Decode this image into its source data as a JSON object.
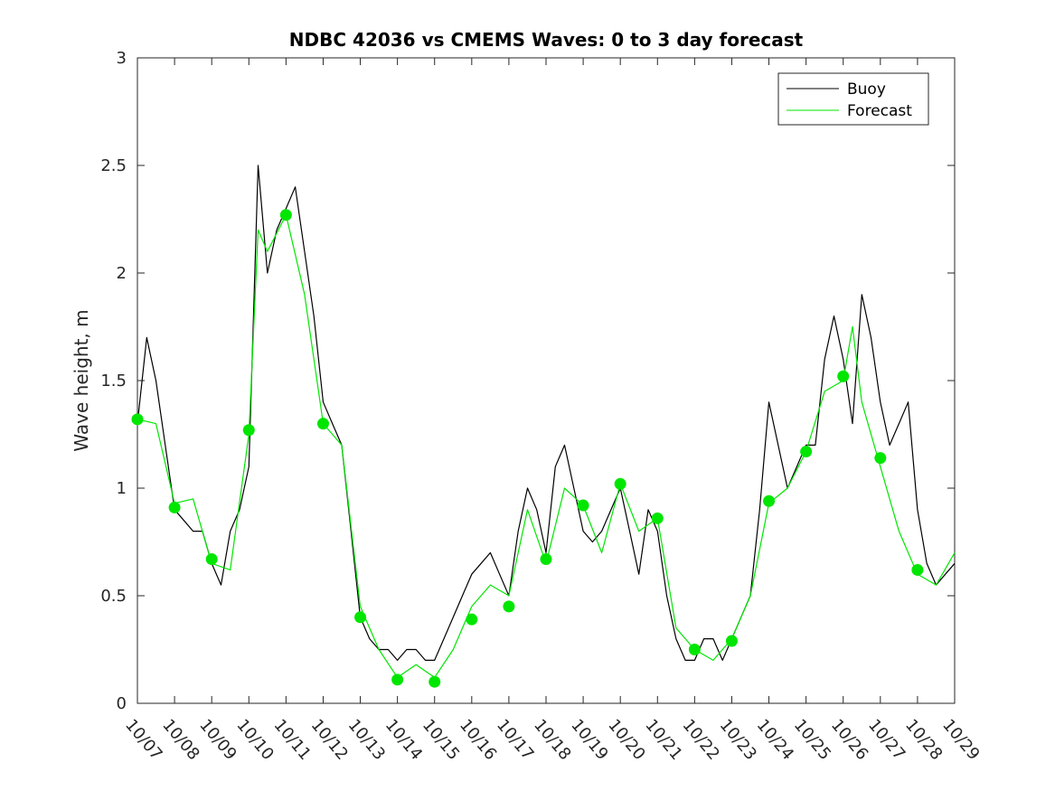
{
  "chart_data": {
    "type": "line",
    "title": "NDBC 42036 vs CMEMS Waves: 0 to 3 day forecast",
    "ylabel": "Wave height, m",
    "xlabel": "",
    "xlim": [
      "10/07",
      "10/29"
    ],
    "ylim": [
      0,
      3
    ],
    "yticks": [
      0,
      0.5,
      1,
      1.5,
      2,
      2.5,
      3
    ],
    "ytick_labels": [
      "0",
      "0.5",
      "1",
      "1.5",
      "2",
      "2.5",
      "3"
    ],
    "xtick_labels": [
      "10/07",
      "10/08",
      "10/09",
      "10/10",
      "10/11",
      "10/12",
      "10/13",
      "10/14",
      "10/15",
      "10/16",
      "10/17",
      "10/18",
      "10/19",
      "10/20",
      "10/21",
      "10/22",
      "10/23",
      "10/24",
      "10/25",
      "10/26",
      "10/27",
      "10/28",
      "10/29"
    ],
    "legend": {
      "position": "top-right",
      "entries": [
        "Buoy",
        "Forecast"
      ]
    },
    "colors": {
      "buoy": "#000000",
      "forecast": "#00e600",
      "markers": "#00e600",
      "axes": "#262626"
    },
    "series": [
      {
        "name": "Buoy",
        "x": [
          "10/07",
          "10/07 06:00",
          "10/07 12:00",
          "10/07 18:00",
          "10/08",
          "10/08 06:00",
          "10/08 12:00",
          "10/08 18:00",
          "10/09",
          "10/09 06:00",
          "10/09 12:00",
          "10/09 18:00",
          "10/10",
          "10/10 06:00",
          "10/10 12:00",
          "10/10 18:00",
          "10/11",
          "10/11 06:00",
          "10/11 12:00",
          "10/11 18:00",
          "10/12",
          "10/12 06:00",
          "10/12 12:00",
          "10/12 18:00",
          "10/13",
          "10/13 06:00",
          "10/13 12:00",
          "10/13 18:00",
          "10/14",
          "10/14 06:00",
          "10/14 12:00",
          "10/14 18:00",
          "10/15",
          "10/15 06:00",
          "10/15 12:00",
          "10/15 18:00",
          "10/16",
          "10/16 06:00",
          "10/16 12:00",
          "10/16 18:00",
          "10/17",
          "10/17 06:00",
          "10/17 12:00",
          "10/17 18:00",
          "10/18",
          "10/18 06:00",
          "10/18 12:00",
          "10/18 18:00",
          "10/19",
          "10/19 06:00",
          "10/19 12:00",
          "10/19 18:00",
          "10/20",
          "10/20 06:00",
          "10/20 12:00",
          "10/20 18:00",
          "10/21",
          "10/21 06:00",
          "10/21 12:00",
          "10/21 18:00",
          "10/22",
          "10/22 06:00",
          "10/22 12:00",
          "10/22 18:00",
          "10/23",
          "10/23 06:00",
          "10/23 12:00",
          "10/23 18:00",
          "10/24",
          "10/24 06:00",
          "10/24 12:00",
          "10/24 18:00",
          "10/25",
          "10/25 06:00",
          "10/25 12:00",
          "10/25 18:00",
          "10/26",
          "10/26 06:00",
          "10/26 12:00",
          "10/26 18:00",
          "10/27",
          "10/27 06:00",
          "10/27 12:00",
          "10/27 18:00",
          "10/28",
          "10/28 06:00",
          "10/28 12:00",
          "10/28 18:00",
          "10/29"
        ],
        "y": [
          1.3,
          1.7,
          1.5,
          1.2,
          0.9,
          0.85,
          0.8,
          0.8,
          0.65,
          0.55,
          0.8,
          0.9,
          1.1,
          2.5,
          2.0,
          2.2,
          2.3,
          2.4,
          2.1,
          1.8,
          1.4,
          1.3,
          1.2,
          0.8,
          0.4,
          0.3,
          0.25,
          0.25,
          0.2,
          0.25,
          0.25,
          0.2,
          0.2,
          0.3,
          0.4,
          0.5,
          0.6,
          0.65,
          0.7,
          0.6,
          0.5,
          0.8,
          1.0,
          0.9,
          0.7,
          1.1,
          1.2,
          1.0,
          0.8,
          0.75,
          0.8,
          0.9,
          1.0,
          0.8,
          0.6,
          0.9,
          0.8,
          0.5,
          0.3,
          0.2,
          0.2,
          0.3,
          0.3,
          0.2,
          0.3,
          0.4,
          0.5,
          0.9,
          1.4,
          1.2,
          1.0,
          1.1,
          1.2,
          1.2,
          1.6,
          1.8,
          1.6,
          1.3,
          1.9,
          1.7,
          1.4,
          1.2,
          1.3,
          1.4,
          0.9,
          0.65,
          0.55,
          0.6,
          0.65
        ]
      },
      {
        "name": "Forecast",
        "x": [
          "10/07",
          "10/07 12:00",
          "10/08",
          "10/08 12:00",
          "10/09",
          "10/09 12:00",
          "10/10",
          "10/10 06:00",
          "10/10 12:00",
          "10/11",
          "10/11 12:00",
          "10/12",
          "10/12 12:00",
          "10/13",
          "10/13 12:00",
          "10/14",
          "10/14 12:00",
          "10/15",
          "10/15 12:00",
          "10/16",
          "10/16 12:00",
          "10/17",
          "10/17 12:00",
          "10/18",
          "10/18 12:00",
          "10/19",
          "10/19 12:00",
          "10/20",
          "10/20 12:00",
          "10/21",
          "10/21 12:00",
          "10/22",
          "10/22 12:00",
          "10/23",
          "10/23 12:00",
          "10/24",
          "10/24 12:00",
          "10/25",
          "10/25 12:00",
          "10/26",
          "10/26 06:00",
          "10/26 12:00",
          "10/27",
          "10/27 12:00",
          "10/28",
          "10/28 12:00",
          "10/29"
        ],
        "y": [
          1.32,
          1.3,
          0.93,
          0.95,
          0.65,
          0.62,
          1.25,
          2.2,
          2.1,
          2.27,
          1.9,
          1.3,
          1.2,
          0.45,
          0.25,
          0.12,
          0.18,
          0.12,
          0.25,
          0.45,
          0.55,
          0.5,
          0.9,
          0.65,
          1.0,
          0.92,
          0.7,
          1.02,
          0.8,
          0.86,
          0.35,
          0.25,
          0.2,
          0.3,
          0.5,
          0.93,
          1.0,
          1.17,
          1.45,
          1.5,
          1.75,
          1.4,
          1.1,
          0.8,
          0.6,
          0.55,
          0.7
        ]
      }
    ],
    "markers": {
      "name": "Forecast",
      "x": [
        "10/07",
        "10/08",
        "10/09",
        "10/10",
        "10/11",
        "10/12",
        "10/13",
        "10/14",
        "10/15",
        "10/16",
        "10/17",
        "10/18",
        "10/19",
        "10/20",
        "10/21",
        "10/22",
        "10/23",
        "10/24",
        "10/25",
        "10/26",
        "10/27",
        "10/28"
      ],
      "y": [
        1.32,
        0.91,
        0.67,
        1.27,
        2.27,
        1.3,
        0.4,
        0.11,
        0.1,
        0.39,
        0.45,
        0.67,
        0.92,
        1.02,
        0.86,
        0.25,
        0.29,
        0.94,
        1.17,
        1.52,
        1.14,
        0.62
      ]
    }
  }
}
